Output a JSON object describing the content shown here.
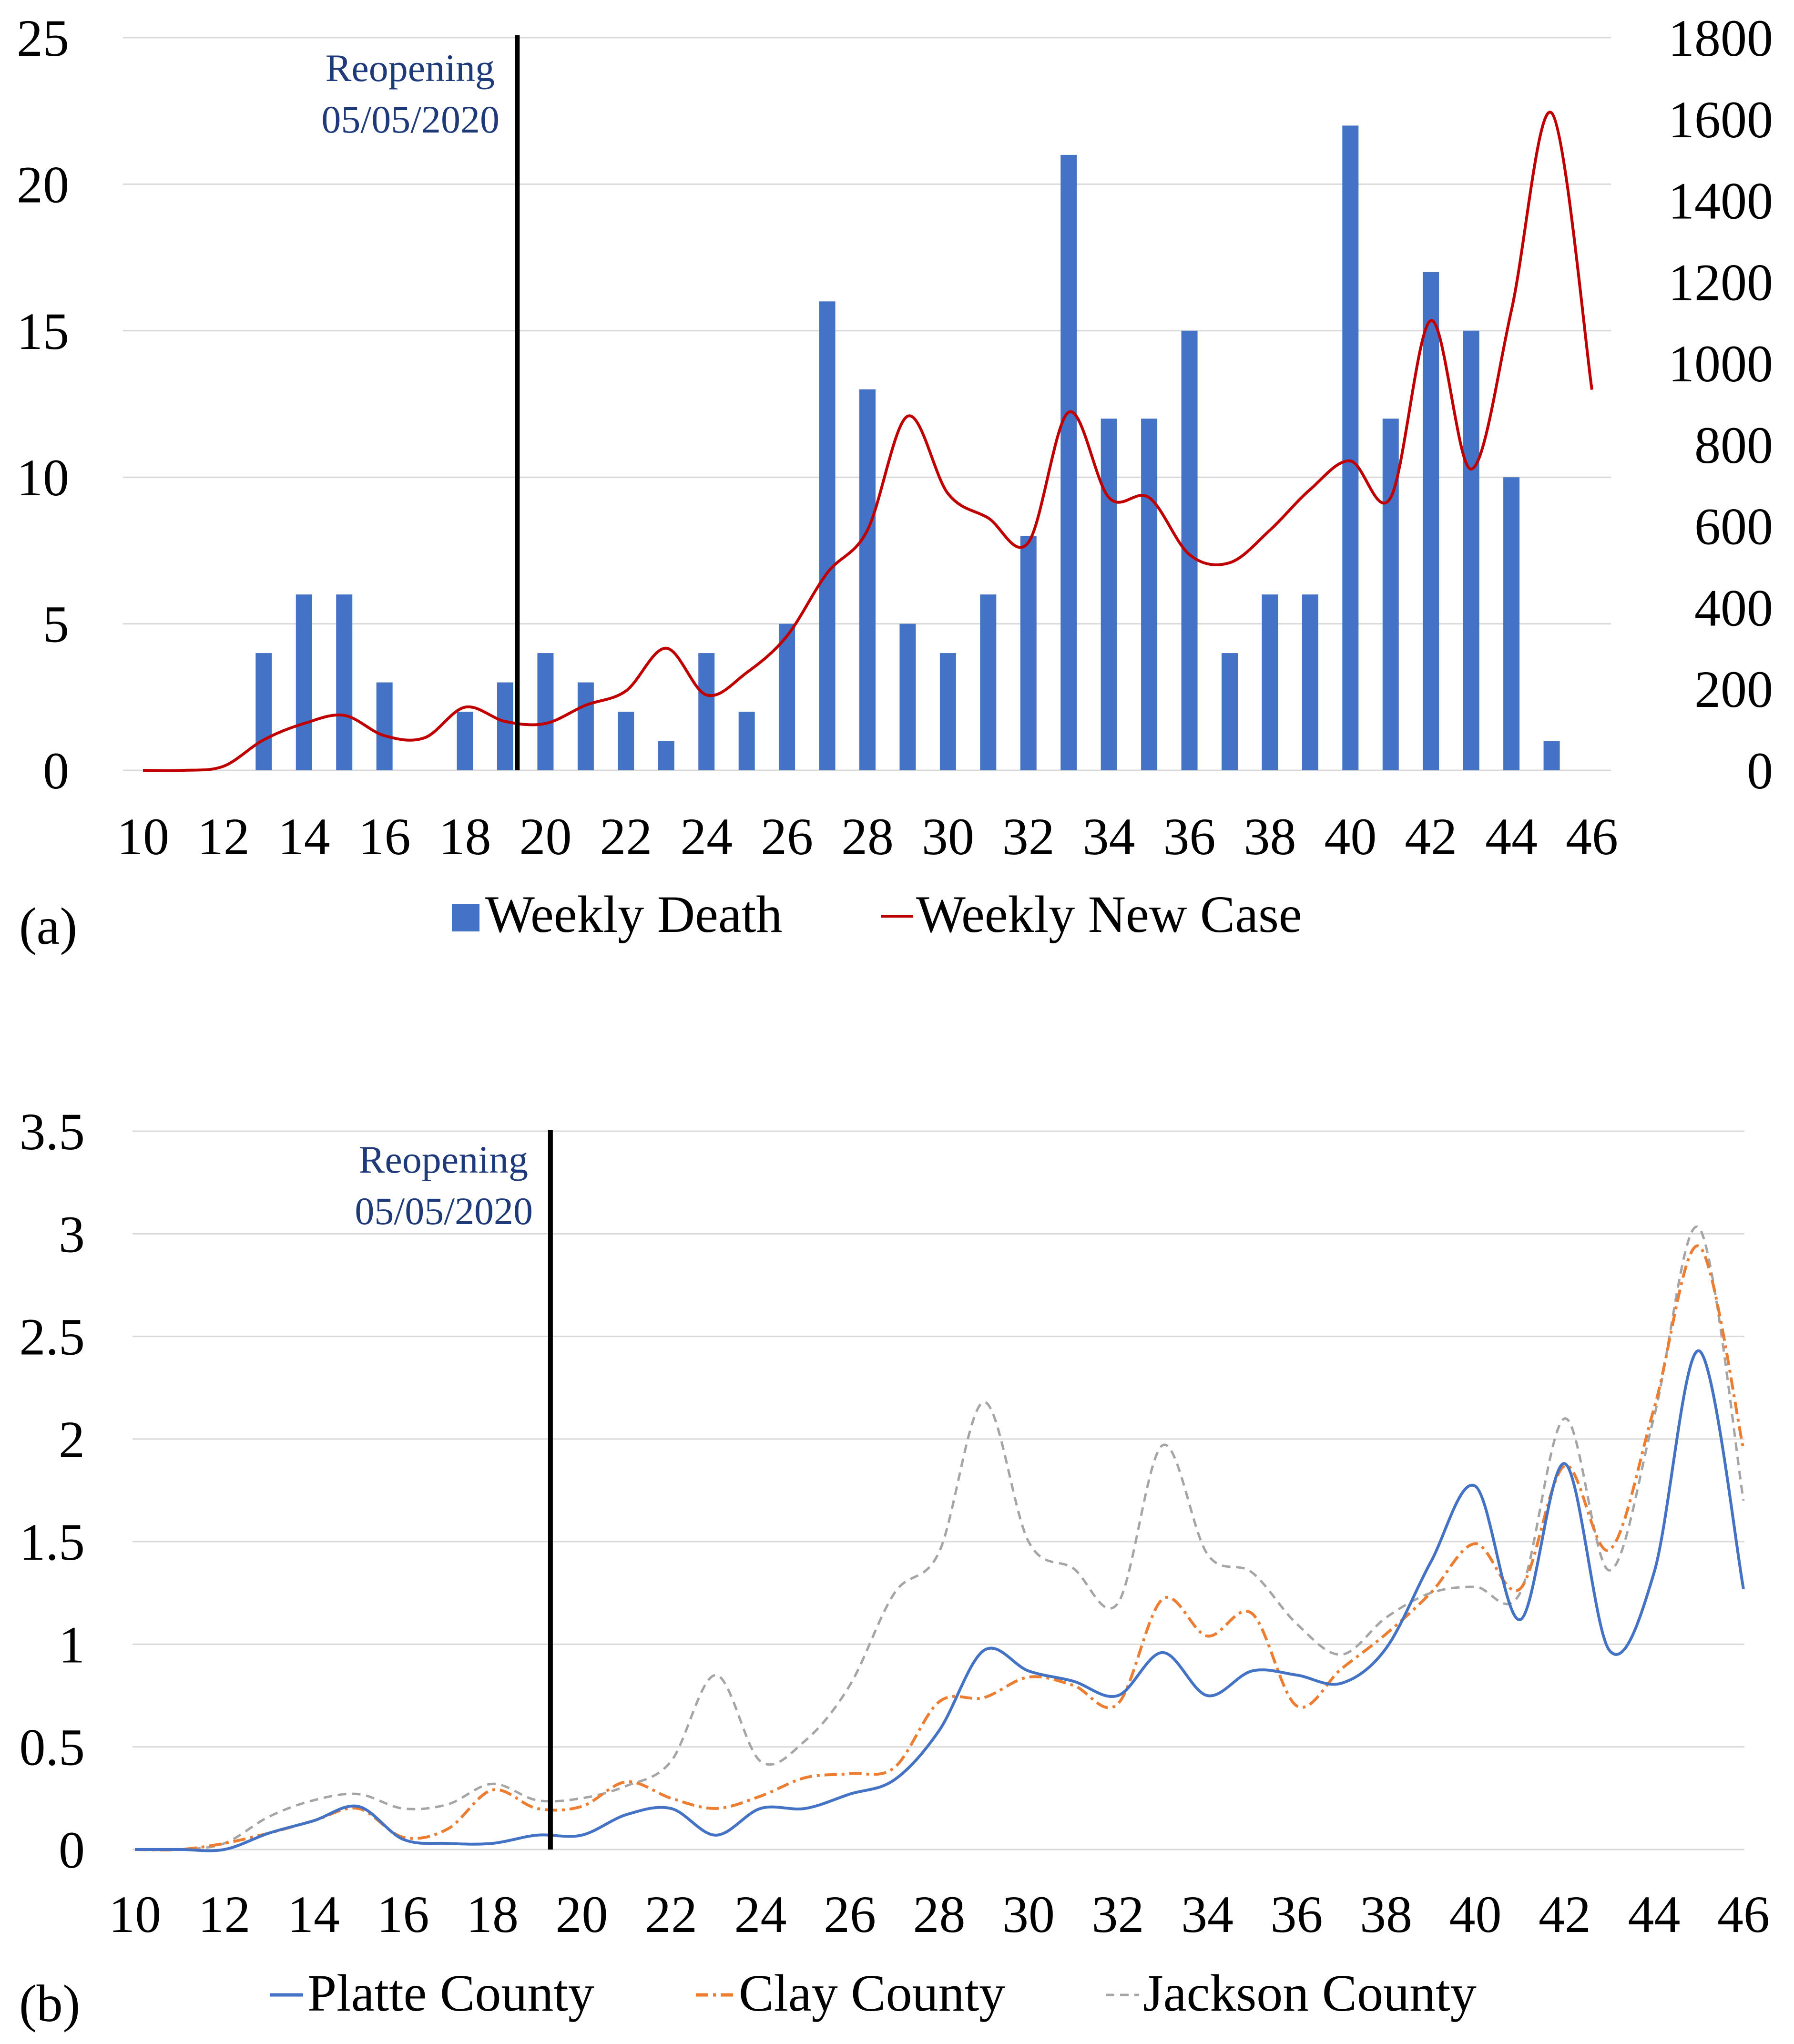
{
  "chart_data": [
    {
      "id": "a",
      "type": "bar+line",
      "panel_label": "(a)",
      "x": [
        10,
        11,
        12,
        13,
        14,
        15,
        16,
        17,
        18,
        19,
        20,
        21,
        22,
        23,
        24,
        25,
        26,
        27,
        28,
        29,
        30,
        31,
        32,
        33,
        34,
        35,
        36,
        37,
        38,
        39,
        40,
        41,
        42,
        43,
        44,
        45,
        46
      ],
      "xlim": [
        10,
        46
      ],
      "xticks": [
        "10",
        "12",
        "14",
        "16",
        "18",
        "20",
        "22",
        "24",
        "26",
        "28",
        "30",
        "32",
        "34",
        "36",
        "38",
        "40",
        "42",
        "44",
        "46"
      ],
      "ylim_left": [
        0,
        25
      ],
      "yticks_left": [
        "0",
        "5",
        "10",
        "15",
        "20",
        "25"
      ],
      "ylim_right": [
        0,
        1800
      ],
      "yticks_right": [
        "0",
        "200",
        "400",
        "600",
        "800",
        "1000",
        "1200",
        "1400",
        "1600",
        "1800"
      ],
      "gridlines": true,
      "series": [
        {
          "name": "Weekly Death",
          "kind": "bar",
          "axis": "left",
          "color": "#4472C4",
          "x": [
            13,
            14,
            15,
            16,
            18,
            19,
            20,
            21,
            22,
            23,
            24,
            25,
            26,
            27,
            28,
            29,
            30,
            31,
            32,
            33,
            34,
            35,
            36,
            37,
            38,
            39,
            40,
            41,
            42,
            43,
            44,
            45
          ],
          "values": [
            4,
            6,
            6,
            3,
            2,
            3,
            4,
            3,
            2,
            1,
            4,
            2,
            5,
            16,
            13,
            5,
            4,
            6,
            8,
            21,
            12,
            12,
            15,
            4,
            6,
            6,
            22,
            12,
            17,
            15,
            10,
            1
          ]
        },
        {
          "name": "Weekly New Case",
          "kind": "line",
          "axis": "right",
          "color": "#C00000",
          "x": [
            10,
            11,
            12,
            13,
            14,
            15,
            16,
            17,
            18,
            19,
            20,
            21,
            22,
            23,
            24,
            25,
            26,
            27,
            28,
            29,
            30,
            31,
            32,
            33,
            34,
            35,
            36,
            37,
            38,
            39,
            40,
            41,
            42,
            43,
            44,
            45,
            46
          ],
          "values": [
            0,
            0,
            10,
            75,
            115,
            135,
            85,
            80,
            155,
            120,
            115,
            160,
            195,
            300,
            185,
            240,
            330,
            485,
            590,
            870,
            680,
            620,
            560,
            880,
            670,
            670,
            530,
            510,
            590,
            690,
            760,
            670,
            1105,
            740,
            1130,
            1615,
            935
          ]
        }
      ],
      "annotation": {
        "x": 19.3,
        "line1": "Reopening",
        "line2": "05/05/2020"
      },
      "legend": [
        "Weekly Death",
        "Weekly New Case"
      ],
      "legend_position": "bottom"
    },
    {
      "id": "b",
      "type": "line",
      "panel_label": "(b)",
      "x": [
        10,
        11,
        12,
        13,
        14,
        15,
        16,
        17,
        18,
        19,
        20,
        21,
        22,
        23,
        24,
        25,
        26,
        27,
        28,
        29,
        30,
        31,
        32,
        33,
        34,
        35,
        36,
        37,
        38,
        39,
        40,
        41,
        42,
        43,
        44,
        45,
        46
      ],
      "xlim": [
        10,
        46
      ],
      "xticks": [
        "10",
        "12",
        "14",
        "16",
        "18",
        "20",
        "22",
        "24",
        "26",
        "28",
        "30",
        "32",
        "34",
        "36",
        "38",
        "40",
        "42",
        "44",
        "46"
      ],
      "ylim": [
        0,
        3.5
      ],
      "yticks": [
        "0",
        "0.5",
        "1",
        "1.5",
        "2",
        "2.5",
        "3",
        "3.5"
      ],
      "gridlines": true,
      "series": [
        {
          "name": "Platte County",
          "color": "#4472C4",
          "dash": "solid",
          "values": [
            0,
            0,
            0,
            0.08,
            0.14,
            0.21,
            0.05,
            0.03,
            0.03,
            0.07,
            0.07,
            0.17,
            0.2,
            0.07,
            0.2,
            0.2,
            0.27,
            0.34,
            0.58,
            0.97,
            0.87,
            0.82,
            0.75,
            0.96,
            0.75,
            0.87,
            0.85,
            0.81,
            0.98,
            1.4,
            1.77,
            1.12,
            1.88,
            0.97,
            1.35,
            2.43,
            1.27
          ]
        },
        {
          "name": "Clay County",
          "color": "#ED7D31",
          "dash": "dashdot",
          "values": [
            0,
            0,
            0.03,
            0.08,
            0.14,
            0.2,
            0.06,
            0.1,
            0.29,
            0.2,
            0.21,
            0.33,
            0.25,
            0.2,
            0.26,
            0.35,
            0.37,
            0.4,
            0.72,
            0.74,
            0.84,
            0.8,
            0.71,
            1.22,
            1.04,
            1.15,
            0.7,
            0.88,
            1.05,
            1.25,
            1.49,
            1.27,
            1.87,
            1.46,
            2.15,
            2.94,
            1.95
          ]
        },
        {
          "name": "Jackson County",
          "color": "#A5A5A5",
          "dash": "dashed",
          "values": [
            0,
            0,
            0.03,
            0.16,
            0.24,
            0.27,
            0.2,
            0.22,
            0.32,
            0.24,
            0.25,
            0.31,
            0.43,
            0.85,
            0.43,
            0.53,
            0.8,
            1.25,
            1.45,
            2.18,
            1.5,
            1.37,
            1.2,
            1.97,
            1.44,
            1.35,
            1.1,
            0.95,
            1.13,
            1.25,
            1.28,
            1.25,
            2.1,
            1.36,
            2.11,
            3.03,
            1.7
          ]
        }
      ],
      "annotation": {
        "x": 19.3,
        "line1": "Reopening",
        "line2": "05/05/2020"
      },
      "legend": [
        "Platte County",
        "Clay County",
        "Jackson County"
      ],
      "legend_position": "bottom"
    }
  ]
}
